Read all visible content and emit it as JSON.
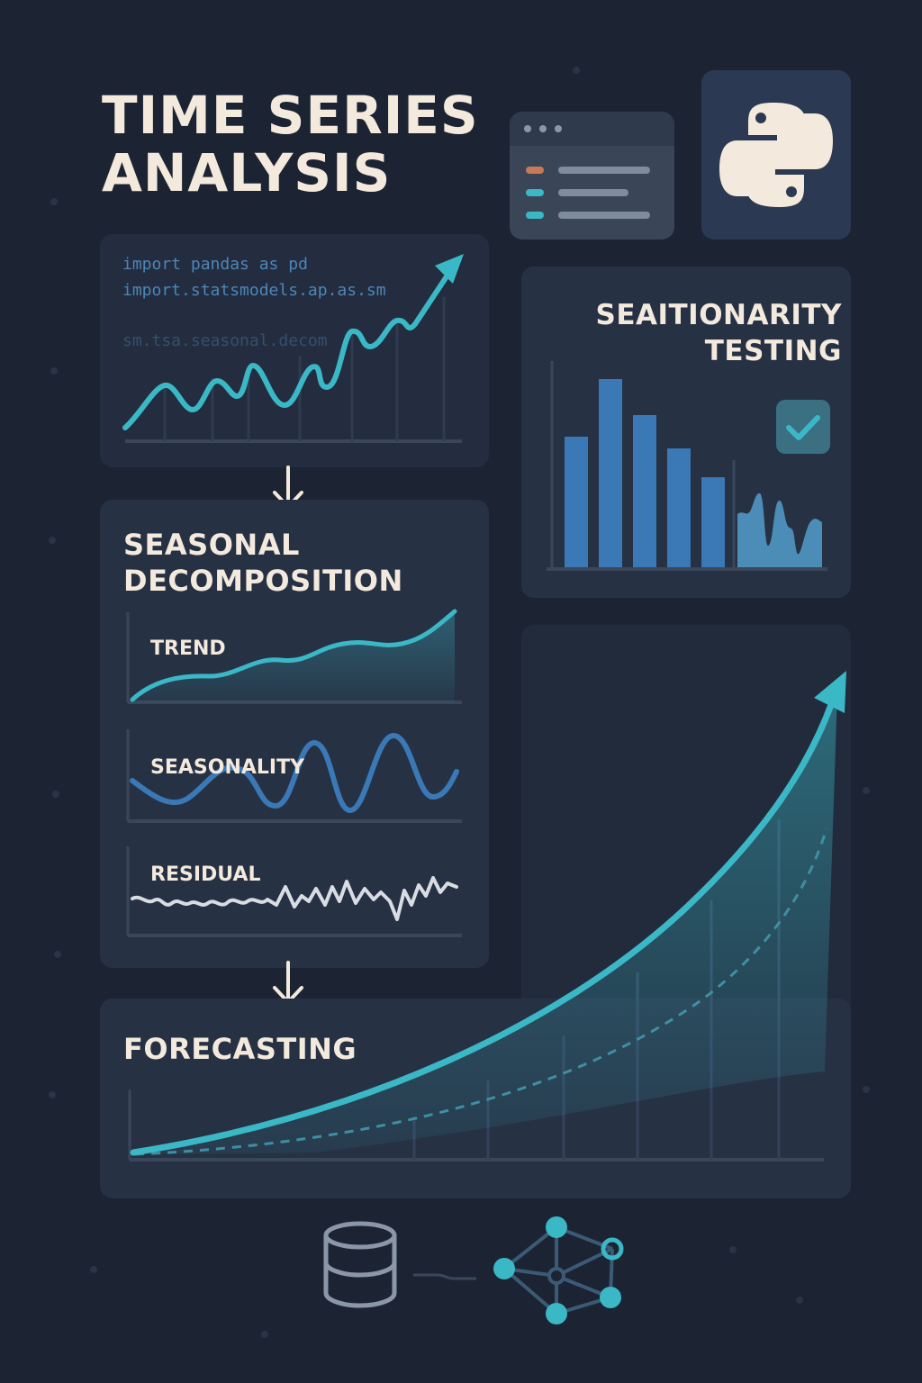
{
  "title": {
    "line1": "TIME SERIES",
    "line2": "ANALYSIS"
  },
  "code": {
    "line1": "import pandas as pd",
    "line2": "import.statsmodels.ap.as.sm",
    "line3": "sm.tsa.seasonal.decom"
  },
  "stationarity": {
    "line1": "SEAITIONARITY",
    "line2": "TESTING"
  },
  "decomposition": {
    "line1": "SEASONAL",
    "line2": "DECOMPOSITION",
    "panels": [
      "TREND",
      "SEASONALITY",
      "RESIDUAL"
    ]
  },
  "forecasting": {
    "title": "FORECASTING"
  },
  "icons": [
    "python-logo-icon",
    "code-window-icon",
    "checkmark-icon",
    "database-icon",
    "network-graph-icon",
    "arrow-down-icon"
  ],
  "colors": {
    "background": "#1c2433",
    "card": "#263144",
    "teal": "#3bb8c6",
    "blue": "#3a78b6",
    "cream": "#f3e9dc",
    "orange": "#c77a5a"
  }
}
